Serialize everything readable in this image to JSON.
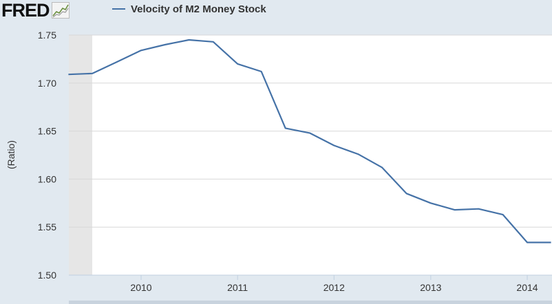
{
  "logo": {
    "text": "FRED",
    "icon": "line-chart-icon"
  },
  "chart_data": {
    "type": "line",
    "title": "",
    "xlabel": "",
    "ylabel": "(Ratio)",
    "ylim": [
      1.5,
      1.75
    ],
    "yticks": [
      "1.75",
      "1.70",
      "1.65",
      "1.60",
      "1.55",
      "1.50"
    ],
    "xticks": [
      "2010",
      "2011",
      "2012",
      "2013",
      "2014"
    ],
    "recession_shading": [
      "2009-04-01",
      "2009-06-30"
    ],
    "grid": "horizontal",
    "legend_position": "top",
    "series": [
      {
        "name": "Velocity of M2 Money Stock",
        "color": "#4572a7",
        "x": [
          "2009-04-01",
          "2009-07-01",
          "2009-10-01",
          "2010-01-01",
          "2010-04-01",
          "2010-07-01",
          "2010-10-01",
          "2011-01-01",
          "2011-04-01",
          "2011-07-01",
          "2011-10-01",
          "2012-01-01",
          "2012-04-01",
          "2012-07-01",
          "2012-10-01",
          "2013-01-01",
          "2013-04-01",
          "2013-07-01",
          "2013-10-01",
          "2014-01-01",
          "2014-04-01"
        ],
        "values": [
          1.709,
          1.71,
          1.722,
          1.734,
          1.74,
          1.745,
          1.743,
          1.72,
          1.712,
          1.653,
          1.648,
          1.635,
          1.626,
          1.612,
          1.585,
          1.575,
          1.568,
          1.569,
          1.563,
          1.534,
          1.534
        ]
      }
    ]
  }
}
